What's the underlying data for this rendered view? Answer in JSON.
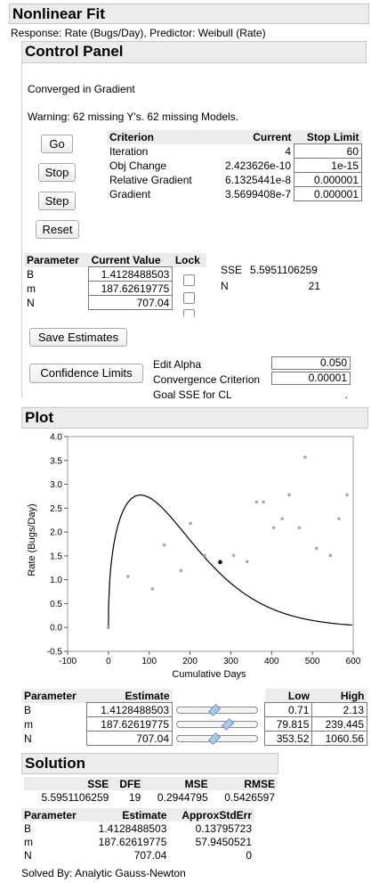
{
  "report": {
    "title": "Nonlinear Fit",
    "response_line": "Response: Rate (Bugs/Day), Predictor: Weibull (Rate)"
  },
  "control_panel": {
    "title": "Control Panel",
    "status": "Converged in Gradient",
    "warning": "Warning: 62 missing Y's. 62 missing Models.",
    "buttons": {
      "go": "Go",
      "stop": "Stop",
      "step": "Step",
      "reset": "Reset"
    },
    "criteria": {
      "headers": [
        "Criterion",
        "Current",
        "Stop Limit"
      ],
      "rows": [
        {
          "name": "Iteration",
          "current": "4",
          "limit": "60"
        },
        {
          "name": "Obj Change",
          "current": "2.423626e-10",
          "limit": "1e-15"
        },
        {
          "name": "Relative Gradient",
          "current": "6.1325441e-8",
          "limit": "0.000001"
        },
        {
          "name": "Gradient",
          "current": "3.5699408e-7",
          "limit": "0.000001"
        }
      ]
    },
    "parameters": {
      "headers": [
        "Parameter",
        "Current Value",
        "Lock"
      ],
      "rows": [
        {
          "name": "B",
          "value": "1.4128488503"
        },
        {
          "name": "m",
          "value": "187.62619775"
        },
        {
          "name": "N",
          "value": "707.04"
        }
      ]
    },
    "sse_label": "SSE",
    "sse_value": "5.5951106259",
    "n_label": "N",
    "n_value": "21",
    "save_estimates": "Save Estimates",
    "confidence_limits": "Confidence Limits",
    "edit_alpha_label": "Edit Alpha",
    "edit_alpha_value": "0.050",
    "convergence_label": "Convergence Criterion",
    "convergence_value": "0.00001",
    "goal_sse_label": "Goal SSE for CL",
    "goal_sse_value": "."
  },
  "plot": {
    "title": "Plot",
    "chart_data": {
      "type": "scatter",
      "xlabel": "Cumulative Days",
      "ylabel": "Rate (Bugs/Day)",
      "xlim": [
        -100,
        600
      ],
      "ylim": [
        -0.5,
        4.0
      ],
      "x_ticks": [
        "-100",
        "0",
        "100",
        "200",
        "300",
        "400",
        "500",
        "600"
      ],
      "y_ticks": [
        "-0.5",
        "0.0",
        "0.5",
        "1.0",
        "1.5",
        "2.0",
        "2.5",
        "3.0",
        "3.5",
        "4.0"
      ],
      "x_tick_values": [
        -100,
        0,
        100,
        200,
        300,
        400,
        500,
        600
      ],
      "y_tick_values": [
        -0.5,
        0,
        0.5,
        1,
        1.5,
        2,
        2.5,
        3,
        3.5,
        4
      ],
      "points": [
        {
          "x": 0,
          "y": 0.0
        },
        {
          "x": 48,
          "y": 1.07
        },
        {
          "x": 108,
          "y": 0.81
        },
        {
          "x": 137,
          "y": 1.73
        },
        {
          "x": 178,
          "y": 1.19
        },
        {
          "x": 201,
          "y": 2.18
        },
        {
          "x": 236,
          "y": 1.51
        },
        {
          "x": 274,
          "y": 1.37,
          "highlight": true
        },
        {
          "x": 307,
          "y": 1.51
        },
        {
          "x": 340,
          "y": 1.38
        },
        {
          "x": 363,
          "y": 2.63
        },
        {
          "x": 380,
          "y": 2.63
        },
        {
          "x": 405,
          "y": 2.09
        },
        {
          "x": 426,
          "y": 2.28
        },
        {
          "x": 443,
          "y": 2.78
        },
        {
          "x": 468,
          "y": 2.09
        },
        {
          "x": 482,
          "y": 3.57
        },
        {
          "x": 510,
          "y": 1.66
        },
        {
          "x": 544,
          "y": 1.51
        },
        {
          "x": 565,
          "y": 2.28
        },
        {
          "x": 585,
          "y": 2.78
        }
      ],
      "fit_curve": {
        "B": 1.4128488503,
        "m": 187.62619775,
        "N": 707.04
      }
    }
  },
  "estimates": {
    "headers": [
      "Parameter",
      "Estimate",
      "Low",
      "High"
    ],
    "rows": [
      {
        "name": "B",
        "estimate": "1.4128488503",
        "slider": 0.45,
        "low": "0.71",
        "high": "2.13"
      },
      {
        "name": "m",
        "estimate": "187.62619775",
        "slider": 0.62,
        "low": "79.815",
        "high": "239.445"
      },
      {
        "name": "N",
        "estimate": "707.04",
        "slider": 0.45,
        "low": "353.52",
        "high": "1060.56"
      }
    ]
  },
  "solution": {
    "title": "Solution",
    "summary_headers": [
      "SSE",
      "DFE",
      "MSE",
      "RMSE"
    ],
    "summary_values": [
      "5.5951106259",
      "19",
      "0.2944795",
      "0.5426597"
    ],
    "param_headers": [
      "Parameter",
      "Estimate",
      "ApproxStdErr"
    ],
    "param_rows": [
      {
        "name": "B",
        "estimate": "1.4128488503",
        "stderr": "0.13795723"
      },
      {
        "name": "m",
        "estimate": "187.62619775",
        "stderr": "57.9450521"
      },
      {
        "name": "N",
        "estimate": "707.04",
        "stderr": "0"
      }
    ],
    "solved_by": "Solved By: Analytic Gauss-Newton"
  }
}
